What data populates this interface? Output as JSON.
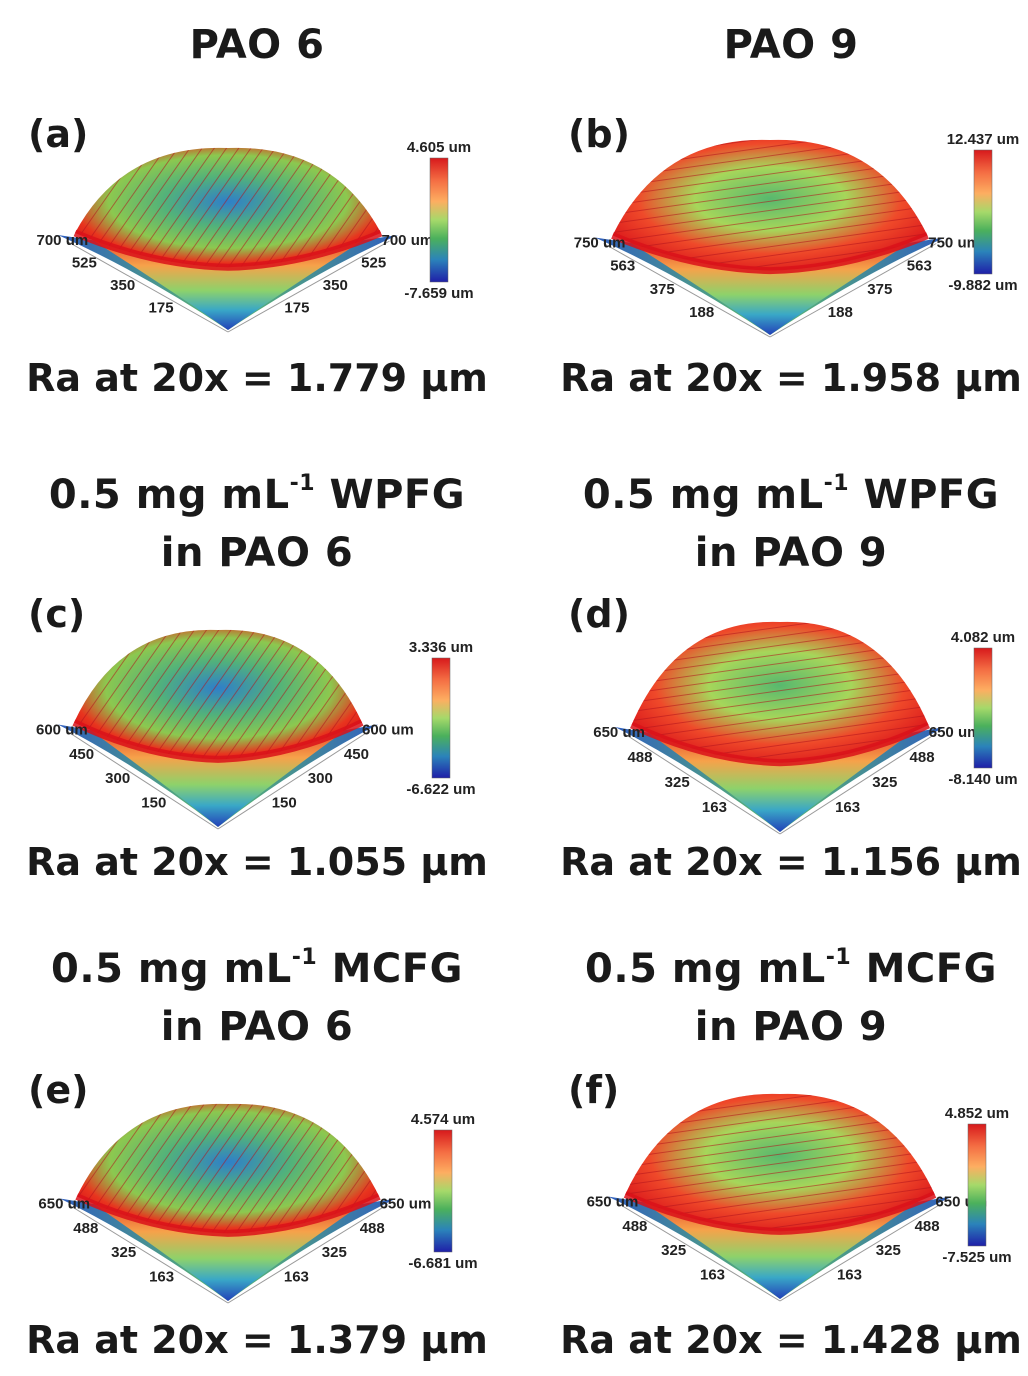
{
  "columns": [
    {
      "title": "PAO 6"
    },
    {
      "title": "PAO 9"
    }
  ],
  "section_titles": [
    {
      "line1_pre": "0.5 mg mL",
      "sup": "-1",
      "line1_post": " WPFG",
      "line2": "in PAO 6"
    },
    {
      "line1_pre": "0.5 mg mL",
      "sup": "-1",
      "line1_post": " WPFG",
      "line2": "in PAO 9"
    },
    {
      "line1_pre": "0.5 mg mL",
      "sup": "-1",
      "line1_post": " MCFG",
      "line2": "in PAO 6"
    },
    {
      "line1_pre": "0.5 mg mL",
      "sup": "-1",
      "line1_post": " MCFG",
      "line2": "in PAO 9"
    }
  ],
  "panels": [
    {
      "tag": "(a)",
      "cb_max": "4.605 um",
      "cb_min": "-7.659 um",
      "axis_left": [
        "700 um",
        "525",
        "350",
        "175"
      ],
      "axis_right": [
        "700 um",
        "525",
        "350",
        "175"
      ],
      "ra": "Ra at 20x = 1.779 μm"
    },
    {
      "tag": "(b)",
      "cb_max": "12.437 um",
      "cb_min": "-9.882 um",
      "axis_left": [
        "750 um",
        "563",
        "375",
        "188"
      ],
      "axis_right": [
        "750 um",
        "563",
        "375",
        "188"
      ],
      "ra": "Ra at 20x = 1.958 μm"
    },
    {
      "tag": "(c)",
      "cb_max": "3.336 um",
      "cb_min": "-6.622 um",
      "axis_left": [
        "600 um",
        "450",
        "300",
        "150"
      ],
      "axis_right": [
        "600 um",
        "450",
        "300",
        "150"
      ],
      "ra": "Ra at 20x = 1.055 μm"
    },
    {
      "tag": "(d)",
      "cb_max": "4.082 um",
      "cb_min": "-8.140 um",
      "axis_left": [
        "650 um",
        "488",
        "325",
        "163"
      ],
      "axis_right": [
        "650 um",
        "488",
        "325",
        "163"
      ],
      "ra": "Ra at 20x = 1.156 μm"
    },
    {
      "tag": "(e)",
      "cb_max": "4.574 um",
      "cb_min": "-6.681 um",
      "axis_left": [
        "650 um",
        "488",
        "325",
        "163"
      ],
      "axis_right": [
        "650 um",
        "488",
        "325",
        "163"
      ],
      "ra": "Ra at 20x = 1.379 μm"
    },
    {
      "tag": "(f)",
      "cb_max": "4.852 um",
      "cb_min": "-7.525 um",
      "axis_left": [
        "650 um",
        "488",
        "325",
        "163"
      ],
      "axis_right": [
        "650 um",
        "488",
        "325",
        "163"
      ],
      "ra": "Ra at 20x = 1.428 μm"
    }
  ],
  "colors": {
    "colorbar": [
      "#d7191c",
      "#f46d43",
      "#fdae61",
      "#a6d96a",
      "#1a9641",
      "#2b83ba",
      "#1f1fa8"
    ],
    "surface_high": "#e31a1c",
    "surface_mid": "#66bd63",
    "surface_low": "#2c7bb6"
  }
}
